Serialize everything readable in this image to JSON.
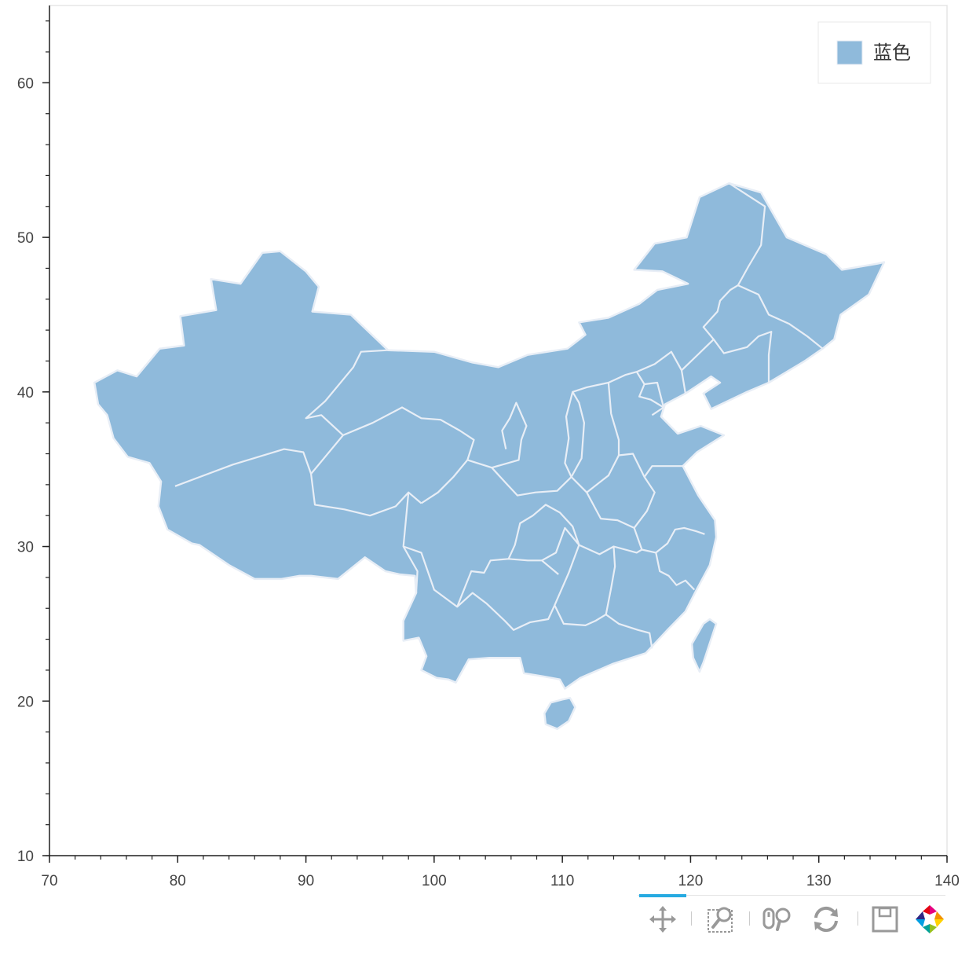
{
  "chart_data": {
    "type": "map",
    "title": "",
    "xlabel": "",
    "ylabel": "",
    "xlim": [
      70,
      140
    ],
    "ylim": [
      10,
      65
    ],
    "x_ticks": [
      70,
      80,
      90,
      100,
      110,
      120,
      130,
      140
    ],
    "x_tick_labels": [
      "70",
      "80",
      "90",
      "100",
      "110",
      "120",
      "130",
      "140"
    ],
    "y_ticks": [
      10,
      20,
      30,
      40,
      50,
      60
    ],
    "y_tick_labels": [
      "10",
      "20",
      "30",
      "40",
      "50",
      "60"
    ],
    "grid": false,
    "legend": {
      "position": "top-right",
      "entries": [
        {
          "label": "蓝色",
          "color": "#8fbadb"
        }
      ]
    },
    "fill_color": "#8fbadb",
    "border_color": "#e8eef6",
    "regions": [
      {
        "name": "mainland",
        "points": [
          [
            73.5,
            40.6
          ],
          [
            75.3,
            41.4
          ],
          [
            76.8,
            41.0
          ],
          [
            78.6,
            42.8
          ],
          [
            80.5,
            43.0
          ],
          [
            80.2,
            44.9
          ],
          [
            83.0,
            45.3
          ],
          [
            82.6,
            47.3
          ],
          [
            84.9,
            47.0
          ],
          [
            86.6,
            49.0
          ],
          [
            88.0,
            49.1
          ],
          [
            90.0,
            47.8
          ],
          [
            91.0,
            46.8
          ],
          [
            90.5,
            45.2
          ],
          [
            93.5,
            45.0
          ],
          [
            96.4,
            42.7
          ],
          [
            100.0,
            42.6
          ],
          [
            103.0,
            41.9
          ],
          [
            105.0,
            41.6
          ],
          [
            107.3,
            42.4
          ],
          [
            110.4,
            42.8
          ],
          [
            111.8,
            43.7
          ],
          [
            111.3,
            44.5
          ],
          [
            113.6,
            44.8
          ],
          [
            116.0,
            45.7
          ],
          [
            117.4,
            46.6
          ],
          [
            119.8,
            47.0
          ],
          [
            117.8,
            47.8
          ],
          [
            115.6,
            47.9
          ],
          [
            117.2,
            49.6
          ],
          [
            119.7,
            50.0
          ],
          [
            120.7,
            52.6
          ],
          [
            123.0,
            53.5
          ],
          [
            125.5,
            52.9
          ],
          [
            127.5,
            50.0
          ],
          [
            130.6,
            48.9
          ],
          [
            131.8,
            47.9
          ],
          [
            134.6,
            48.3
          ],
          [
            135.1,
            48.4
          ],
          [
            133.9,
            46.3
          ],
          [
            131.7,
            45.0
          ],
          [
            131.2,
            43.4
          ],
          [
            130.3,
            42.8
          ],
          [
            128.9,
            42.0
          ],
          [
            126.1,
            40.6
          ],
          [
            124.4,
            40.0
          ],
          [
            121.6,
            38.9
          ],
          [
            121.0,
            39.9
          ],
          [
            122.3,
            40.6
          ],
          [
            121.6,
            41.0
          ],
          [
            119.6,
            39.9
          ],
          [
            118.0,
            39.2
          ],
          [
            117.7,
            38.4
          ],
          [
            119.0,
            37.3
          ],
          [
            120.8,
            37.8
          ],
          [
            122.6,
            37.2
          ],
          [
            120.5,
            36.1
          ],
          [
            119.4,
            35.2
          ],
          [
            120.6,
            33.3
          ],
          [
            121.9,
            31.7
          ],
          [
            122.0,
            30.6
          ],
          [
            121.5,
            28.8
          ],
          [
            120.4,
            27.1
          ],
          [
            119.6,
            25.8
          ],
          [
            118.2,
            24.6
          ],
          [
            116.5,
            23.1
          ],
          [
            113.9,
            22.4
          ],
          [
            111.4,
            21.5
          ],
          [
            110.2,
            20.8
          ],
          [
            109.8,
            21.4
          ],
          [
            108.5,
            21.6
          ],
          [
            107.0,
            21.8
          ],
          [
            106.7,
            22.8
          ],
          [
            104.3,
            22.8
          ],
          [
            102.7,
            22.7
          ],
          [
            101.7,
            21.2
          ],
          [
            101.1,
            21.4
          ],
          [
            100.2,
            21.5
          ],
          [
            99.0,
            22.0
          ],
          [
            99.4,
            22.9
          ],
          [
            98.8,
            24.1
          ],
          [
            97.6,
            23.9
          ],
          [
            97.6,
            25.2
          ],
          [
            98.6,
            27.0
          ],
          [
            98.5,
            28.1
          ],
          [
            97.3,
            28.2
          ],
          [
            96.2,
            28.4
          ],
          [
            94.6,
            29.3
          ],
          [
            92.5,
            27.9
          ],
          [
            90.4,
            28.1
          ],
          [
            89.5,
            28.1
          ],
          [
            88.1,
            27.9
          ],
          [
            86.0,
            27.9
          ],
          [
            84.0,
            28.8
          ],
          [
            81.7,
            30.1
          ],
          [
            81.1,
            30.2
          ],
          [
            79.2,
            31.1
          ],
          [
            78.5,
            32.6
          ],
          [
            78.7,
            34.2
          ],
          [
            77.8,
            35.4
          ],
          [
            76.1,
            35.8
          ],
          [
            75.0,
            37.0
          ],
          [
            74.5,
            38.5
          ],
          [
            73.8,
            39.2
          ]
        ]
      },
      {
        "name": "hainan",
        "points": [
          [
            108.6,
            19.2
          ],
          [
            109.1,
            19.9
          ],
          [
            110.0,
            20.1
          ],
          [
            110.6,
            20.2
          ],
          [
            111.0,
            19.6
          ],
          [
            110.5,
            18.7
          ],
          [
            109.6,
            18.2
          ],
          [
            108.7,
            18.5
          ]
        ]
      },
      {
        "name": "taiwan",
        "points": [
          [
            121.0,
            25.0
          ],
          [
            121.5,
            25.3
          ],
          [
            122.0,
            25.0
          ],
          [
            121.4,
            23.5
          ],
          [
            121.0,
            22.5
          ],
          [
            120.7,
            21.9
          ],
          [
            120.2,
            22.8
          ],
          [
            120.1,
            23.7
          ]
        ]
      }
    ],
    "internal_borders": [
      [
        [
          79.8,
          33.9
        ],
        [
          84.3,
          35.3
        ],
        [
          88.3,
          36.3
        ],
        [
          89.8,
          36.1
        ],
        [
          90.4,
          34.7
        ],
        [
          90.7,
          32.7
        ],
        [
          93.0,
          32.4
        ],
        [
          95.0,
          32.0
        ],
        [
          97.0,
          32.6
        ],
        [
          98.0,
          33.5
        ],
        [
          99.0,
          32.8
        ]
      ],
      [
        [
          90.4,
          34.7
        ],
        [
          91.4,
          35.7
        ],
        [
          92.9,
          37.2
        ],
        [
          91.2,
          38.5
        ],
        [
          90.0,
          38.3
        ],
        [
          91.5,
          39.4
        ],
        [
          93.7,
          41.6
        ],
        [
          94.3,
          42.6
        ],
        [
          96.4,
          42.7
        ]
      ],
      [
        [
          92.9,
          37.2
        ],
        [
          95.2,
          38.0
        ],
        [
          97.5,
          39.0
        ],
        [
          99.0,
          38.3
        ],
        [
          100.5,
          38.2
        ],
        [
          102.0,
          37.5
        ],
        [
          103.1,
          36.9
        ],
        [
          102.6,
          35.6
        ],
        [
          101.5,
          34.5
        ],
        [
          100.3,
          33.5
        ],
        [
          99.0,
          32.8
        ]
      ],
      [
        [
          98.0,
          33.5
        ],
        [
          97.6,
          30.0
        ],
        [
          98.7,
          28.4
        ],
        [
          98.6,
          27.0
        ]
      ],
      [
        [
          97.6,
          30.0
        ],
        [
          99.0,
          29.6
        ],
        [
          100.0,
          27.2
        ],
        [
          101.8,
          26.1
        ],
        [
          103.0,
          27.0
        ],
        [
          104.1,
          26.3
        ],
        [
          105.5,
          25.2
        ],
        [
          106.2,
          24.6
        ],
        [
          107.5,
          25.1
        ],
        [
          108.9,
          25.3
        ],
        [
          109.4,
          26.2
        ],
        [
          110.1,
          25.0
        ],
        [
          111.8,
          24.9
        ],
        [
          112.6,
          25.2
        ],
        [
          113.4,
          25.6
        ],
        [
          114.4,
          25.0
        ],
        [
          115.9,
          24.6
        ],
        [
          116.8,
          24.4
        ],
        [
          117.0,
          23.4
        ]
      ],
      [
        [
          101.8,
          26.1
        ],
        [
          102.9,
          28.4
        ],
        [
          103.9,
          28.3
        ],
        [
          104.4,
          29.1
        ],
        [
          105.8,
          29.2
        ],
        [
          107.3,
          29.1
        ],
        [
          108.4,
          29.1
        ],
        [
          109.7,
          28.2
        ]
      ],
      [
        [
          105.8,
          29.2
        ],
        [
          106.3,
          30.1
        ],
        [
          106.7,
          31.5
        ],
        [
          107.7,
          32.0
        ],
        [
          108.7,
          32.7
        ],
        [
          109.8,
          32.2
        ],
        [
          110.8,
          31.3
        ],
        [
          111.3,
          30.1
        ]
      ],
      [
        [
          102.6,
          35.6
        ],
        [
          104.5,
          35.1
        ],
        [
          105.6,
          34.1
        ],
        [
          106.5,
          33.3
        ],
        [
          107.9,
          33.5
        ],
        [
          109.6,
          33.6
        ],
        [
          110.7,
          34.5
        ],
        [
          111.9,
          33.5
        ]
      ],
      [
        [
          104.5,
          35.1
        ],
        [
          106.6,
          35.6
        ],
        [
          106.8,
          36.9
        ],
        [
          107.2,
          37.8
        ],
        [
          106.4,
          39.3
        ],
        [
          105.9,
          38.3
        ],
        [
          105.3,
          37.5
        ],
        [
          105.6,
          36.3
        ]
      ],
      [
        [
          108.4,
          29.1
        ],
        [
          109.5,
          29.6
        ],
        [
          110.2,
          31.2
        ],
        [
          111.3,
          30.1
        ],
        [
          112.9,
          29.5
        ],
        [
          114.0,
          30.0
        ],
        [
          115.8,
          29.6
        ],
        [
          116.2,
          29.8
        ],
        [
          115.6,
          31.2
        ],
        [
          114.3,
          31.7
        ],
        [
          113.0,
          31.8
        ],
        [
          111.9,
          33.5
        ]
      ],
      [
        [
          109.4,
          26.2
        ],
        [
          110.5,
          28.3
        ],
        [
          111.3,
          30.1
        ]
      ],
      [
        [
          113.4,
          25.6
        ],
        [
          113.8,
          27.3
        ],
        [
          114.1,
          28.7
        ],
        [
          114.0,
          30.0
        ]
      ],
      [
        [
          116.2,
          29.8
        ],
        [
          117.3,
          29.6
        ],
        [
          117.6,
          28.4
        ],
        [
          118.3,
          28.1
        ],
        [
          118.9,
          27.5
        ],
        [
          119.6,
          27.8
        ],
        [
          120.3,
          27.2
        ]
      ],
      [
        [
          115.6,
          31.2
        ],
        [
          116.6,
          32.3
        ],
        [
          117.2,
          33.5
        ],
        [
          116.4,
          34.5
        ],
        [
          117.0,
          35.2
        ],
        [
          118.5,
          35.2
        ],
        [
          119.4,
          35.2
        ]
      ],
      [
        [
          117.3,
          29.6
        ],
        [
          118.2,
          30.2
        ],
        [
          118.8,
          31.1
        ],
        [
          119.5,
          31.2
        ],
        [
          120.4,
          31.0
        ],
        [
          121.1,
          30.8
        ]
      ],
      [
        [
          111.9,
          33.5
        ],
        [
          113.6,
          34.6
        ],
        [
          114.4,
          35.9
        ],
        [
          115.5,
          36.0
        ],
        [
          116.4,
          34.5
        ]
      ],
      [
        [
          110.7,
          34.5
        ],
        [
          111.5,
          35.7
        ],
        [
          111.7,
          38.0
        ],
        [
          111.3,
          39.3
        ],
        [
          110.8,
          40.0
        ],
        [
          111.9,
          40.3
        ],
        [
          113.6,
          40.6
        ],
        [
          113.8,
          38.6
        ],
        [
          114.4,
          36.9
        ],
        [
          114.4,
          35.9
        ]
      ],
      [
        [
          110.8,
          40.0
        ],
        [
          110.3,
          38.4
        ],
        [
          110.5,
          37.0
        ],
        [
          110.2,
          35.4
        ],
        [
          110.7,
          34.5
        ]
      ],
      [
        [
          113.6,
          40.6
        ],
        [
          114.9,
          41.1
        ],
        [
          115.8,
          41.3
        ],
        [
          117.2,
          41.8
        ],
        [
          118.5,
          42.6
        ],
        [
          119.3,
          41.4
        ],
        [
          119.6,
          39.9
        ]
      ],
      [
        [
          115.8,
          41.3
        ],
        [
          116.4,
          40.5
        ],
        [
          116.0,
          39.7
        ],
        [
          116.9,
          39.5
        ],
        [
          117.9,
          39.0
        ],
        [
          117.0,
          38.5
        ]
      ],
      [
        [
          117.9,
          39.0
        ],
        [
          117.4,
          40.6
        ],
        [
          116.4,
          40.5
        ]
      ],
      [
        [
          119.3,
          41.4
        ],
        [
          120.8,
          42.6
        ],
        [
          121.8,
          43.4
        ],
        [
          122.6,
          42.5
        ],
        [
          124.4,
          42.9
        ],
        [
          125.3,
          43.6
        ],
        [
          126.3,
          43.9
        ],
        [
          126.1,
          42.4
        ],
        [
          126.1,
          40.6
        ]
      ],
      [
        [
          121.8,
          43.4
        ],
        [
          121.0,
          44.2
        ],
        [
          122.1,
          45.2
        ],
        [
          122.3,
          45.9
        ],
        [
          123.1,
          46.6
        ],
        [
          123.7,
          46.9
        ],
        [
          124.5,
          48.1
        ],
        [
          125.5,
          49.5
        ],
        [
          125.8,
          52.0
        ],
        [
          123.0,
          53.5
        ]
      ],
      [
        [
          123.7,
          46.9
        ],
        [
          125.3,
          46.3
        ],
        [
          126.1,
          45.0
        ],
        [
          127.7,
          44.4
        ],
        [
          129.1,
          43.6
        ],
        [
          130.3,
          42.8
        ]
      ]
    ]
  },
  "toolbar": {
    "tools": [
      {
        "name": "pan",
        "label": "Pan"
      },
      {
        "name": "box-zoom",
        "label": "Box Zoom"
      },
      {
        "name": "wheel-zoom",
        "label": "Wheel Zoom"
      },
      {
        "name": "reset",
        "label": "Reset"
      },
      {
        "name": "save",
        "label": "Save"
      },
      {
        "name": "bokeh-logo",
        "label": "Bokeh"
      }
    ]
  }
}
